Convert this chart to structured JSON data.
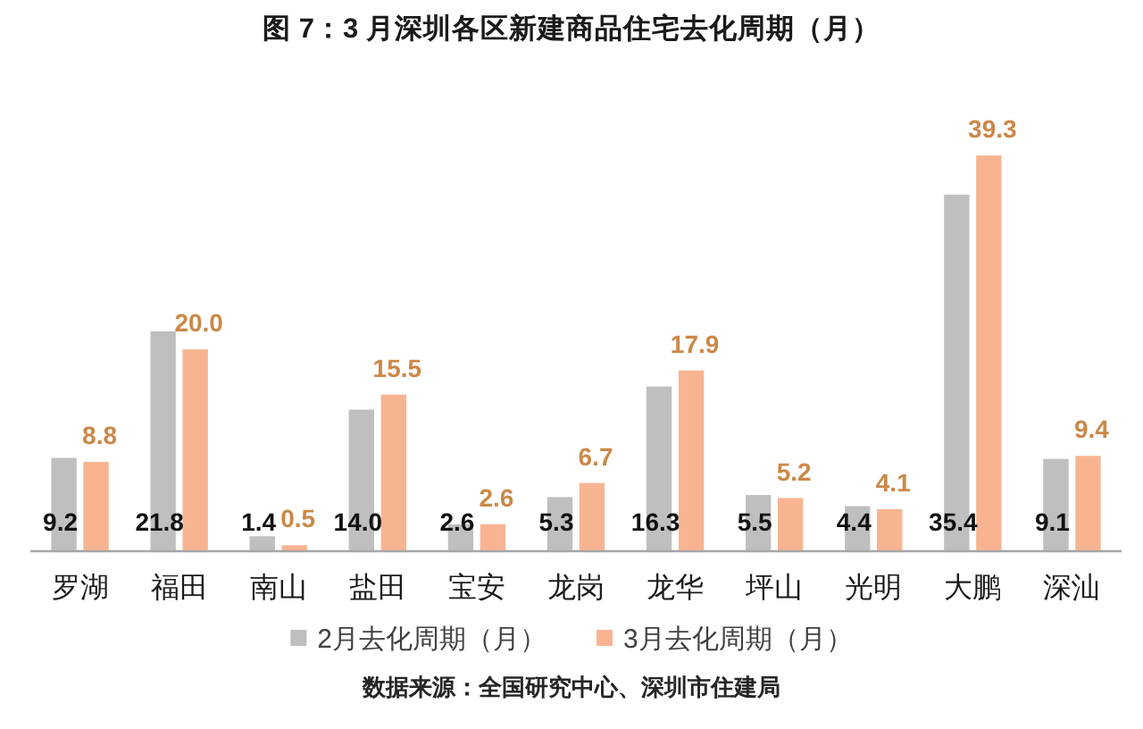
{
  "chart_data": {
    "type": "bar",
    "title": "图 7：3 月深圳各区新建商品住宅去化周期（月）",
    "categories": [
      "罗湖",
      "福田",
      "南山",
      "盐田",
      "宝安",
      "龙岗",
      "龙华",
      "坪山",
      "光明",
      "大鹏",
      "深汕"
    ],
    "series": [
      {
        "name": "2月去化周期（月）",
        "color": "#bfbfbf",
        "values": [
          9.2,
          21.8,
          1.4,
          14.0,
          2.6,
          5.3,
          16.3,
          5.5,
          4.4,
          35.4,
          9.1
        ],
        "value_labels": [
          "9.2",
          "21.8",
          "1.4",
          "14.0",
          "2.6",
          "5.3",
          "16.3",
          "5.5",
          "4.4",
          "35.4",
          "9.1"
        ]
      },
      {
        "name": "3月去化周期（月）",
        "color": "#f8b491",
        "values": [
          8.8,
          20.0,
          0.5,
          15.5,
          2.6,
          6.7,
          17.9,
          5.2,
          4.1,
          39.3,
          9.4
        ],
        "value_labels": [
          "8.8",
          "20.0",
          "0.5",
          "15.5",
          "2.6",
          "6.7",
          "17.9",
          "5.2",
          "4.1",
          "39.3",
          "9.4"
        ]
      }
    ],
    "legend": "bottom",
    "annotations": [
      "数据来源：全国研究中心、深圳市住建局"
    ]
  }
}
